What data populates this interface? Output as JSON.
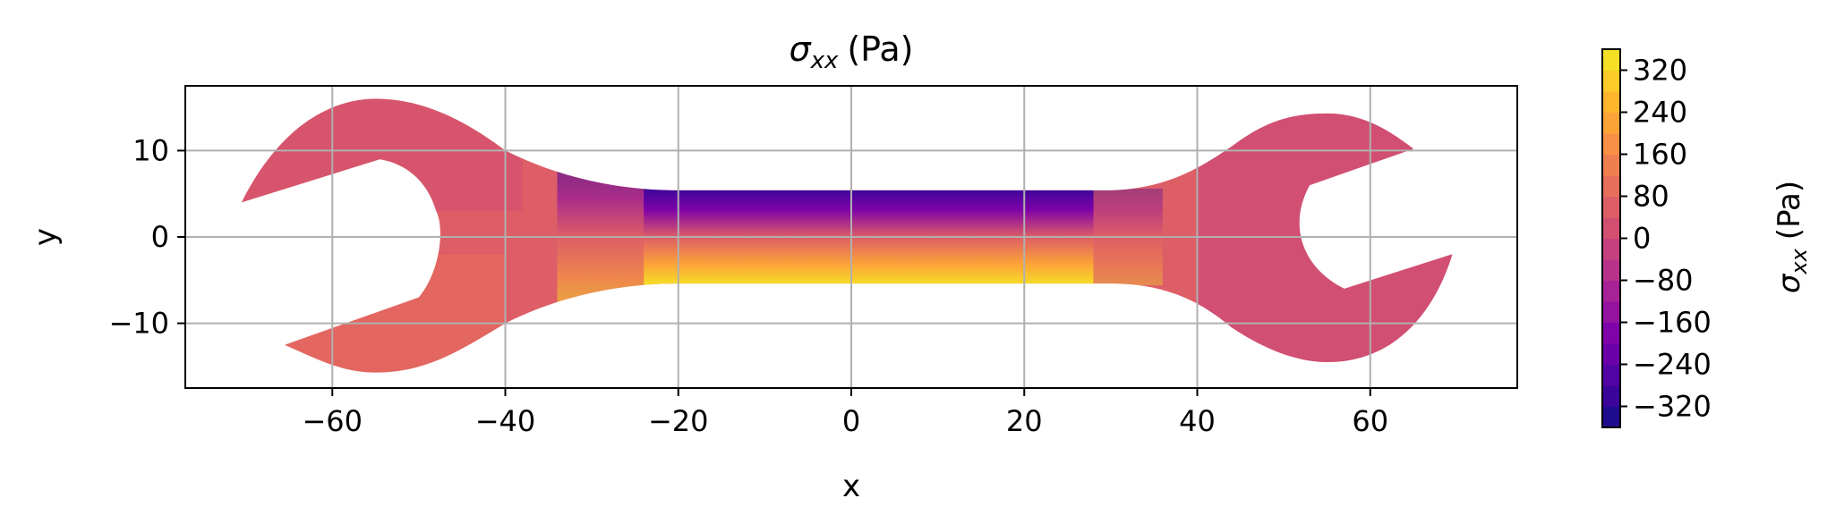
{
  "chart_data": {
    "type": "heatmap",
    "title": "σxx (Pa)",
    "title_parts": {
      "symbol": "σ",
      "subscript": "xx",
      "unit": "(Pa)"
    },
    "xlabel": "x",
    "ylabel": "y",
    "colorbar_label": "σxx (Pa)",
    "colorbar_label_parts": {
      "symbol": "σ",
      "subscript": "xx",
      "unit": "(Pa)"
    },
    "colormap": "plasma",
    "xlim": [
      -77,
      77
    ],
    "ylim": [
      -17.5,
      17.5
    ],
    "x_ticks": [
      -60,
      -40,
      -20,
      0,
      20,
      40,
      60
    ],
    "x_tick_labels": [
      "−60",
      "−40",
      "−20",
      "0",
      "20",
      "40",
      "60"
    ],
    "y_ticks": [
      -10,
      0,
      10
    ],
    "y_tick_labels": [
      "−10",
      "0",
      "10"
    ],
    "grid": true,
    "color_range": [
      -360,
      360
    ],
    "colorbar_ticks": [
      -320,
      -240,
      -160,
      -80,
      0,
      80,
      160,
      240,
      320
    ],
    "colorbar_tick_labels": [
      "−320",
      "−240",
      "−160",
      "−80",
      "0",
      "80",
      "160",
      "240",
      "320"
    ],
    "colorbar_levels": [
      -360,
      -320,
      -280,
      -240,
      -200,
      -160,
      -120,
      -80,
      -40,
      0,
      40,
      80,
      120,
      160,
      200,
      240,
      280,
      320,
      360
    ],
    "colorbar_colors": [
      "#1f0c8d",
      "#3b049a",
      "#5302a3",
      "#6a00a8",
      "#7f03a8",
      "#9512a1",
      "#a72197",
      "#b83289",
      "#c5407e",
      "#d24f71",
      "#dd5e66",
      "#e76e5b",
      "#f07f4f",
      "#f79044",
      "#fca338",
      "#fdb52e",
      "#fbcb27",
      "#f5e026",
      "#f0f921"
    ],
    "body_regions": [
      {
        "name": "wrench-base",
        "value": 20
      },
      {
        "name": "left-head-upper-tint",
        "value": 0
      },
      {
        "name": "left-jaw-lower",
        "value": 60
      },
      {
        "name": "right-head-tint",
        "value": -20
      },
      {
        "name": "shaft-upper-edge",
        "value": -320
      },
      {
        "name": "shaft-upper-mid",
        "value": -180
      },
      {
        "name": "shaft-centerline",
        "value": 40
      },
      {
        "name": "shaft-lower-mid",
        "value": 180
      },
      {
        "name": "shaft-lower-edge",
        "value": 320
      }
    ]
  }
}
